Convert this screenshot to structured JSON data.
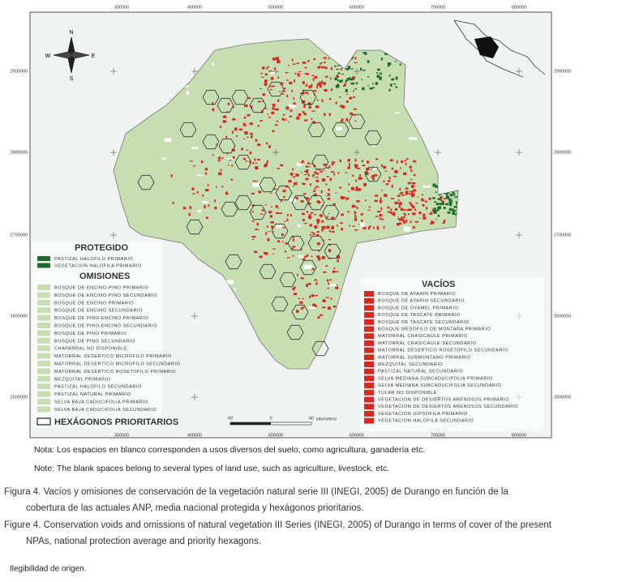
{
  "map": {
    "x_coordinates_top": [
      "300000",
      "400000",
      "500000",
      "600000",
      "700000",
      "800000"
    ],
    "x_coordinates_bottom": [
      "300000",
      "400000",
      "500000",
      "600000",
      "700000",
      "800000"
    ],
    "y_coordinates_left": [
      "2900000",
      "2800000",
      "2700000",
      "2600000",
      "2500000"
    ],
    "y_coordinates_right": [
      "2900000",
      "2800000",
      "2700000",
      "2600000",
      "2500000"
    ],
    "compass": {
      "n": "N",
      "s": "S",
      "e": "E",
      "w": "W"
    },
    "legend": {
      "protegido": {
        "title": "PROTEGIDO",
        "items": [
          "PASTIZAL HALOFILO PRIMARIO",
          "VEGETACION HALOFILA PRIMARIO"
        ]
      },
      "omisiones": {
        "title": "OMISIONES",
        "items": [
          "BOSQUE DE ENCINO-PINO PRIMARIO",
          "BOSQUE DE ENCINO-PINO SECUNDARIO",
          "BOSQUE DE ENCINO PRIMARIO",
          "BOSQUE DE ENCINO SECUNDARIO",
          "BOSQUE DE PINO-ENCINO PRIMARIO",
          "BOSQUE DE PINO-ENCINO SECUNDARIO",
          "BOSQUE DE PINO PRIMARIO",
          "BOSQUE DE PINO SECUNDARIO",
          "CHAPARRAL NO DISPONIBLE",
          "MATORRAL DESERTICO MICROFILO PRIMARIO",
          "MATORRAL DESERTICO MICROFILO SECUNDARIO",
          "MATORRAL DESERTICO ROSETOFILO PRIMARIO",
          "MEZQUITAL PRIMARIO",
          "PASTIZAL HALOFILO SECUNDARIO",
          "PASTIZAL NATURAL PRIMARIO",
          "SELVA BAJA CADUCIFOLIA PRIMARIO",
          "SELVA BAJA CADUCIFOLIA SECUNDARIO"
        ]
      },
      "hexagonos": "HEXÁGONOS PRIORITARIOS",
      "vacios": {
        "title": "VACÍOS",
        "items": [
          "BOSQUE DE AYARIN PRIMARIO",
          "BOSQUE DE AYARIN SECUNDARIO",
          "BOSQUE DE OYAMEL PRIMARIO",
          "BOSQUE DE TASCATE PRIMARIO",
          "BOSQUE DE TASCATE SECUNDARIO",
          "BOSQUE MESOFILO DE MONTAÑA PRIMARIO",
          "MATORRAL CRASICAULE PRIMARIO",
          "MATORRAL CRASICAULE SECUNDARIO",
          "MATORRAL DESERTICO ROSETOFILO SECUNDARIO",
          "MATORRAL SUBMONTANO PRIMARIO",
          "MEZQUITAL SECUNDARIO",
          "PASTIZAL NATURAL SECUNDARIO",
          "SELVA MEDIANA SUBCADUCIFOLIA PRIMARIO",
          "SELVA MEDIANA SUBCADUCIFOLIA SECUNDARIO",
          "TULAR NO DISPONIBLE",
          "VEGETACION DE DESIERTOS ARENOSOS PRIMARIO",
          "VEGETACION DE DESIERTOS ARENOSOS SECUNDARIO",
          "VEGETACION GIPSOFILA PRIMARIO",
          "VEGETACION HALOFILA SECUNDARIO"
        ]
      }
    },
    "scale_bar": {
      "labels": [
        "60",
        "0",
        "60"
      ],
      "unit": "kilometers"
    }
  },
  "notes": [
    "Nota: Los espacios en blanco corresponden a usos diversos del suelo, como agricultura, ganadería etc.",
    "Note: The blank spaces belong to several types of land use, such as agriculture, livestock, etc."
  ],
  "captions": [
    "Figura 4. Vacíos y omisiones de conservación de la vegetación natural serie III (INEGI, 2005) de Durango en función de la",
    "cobertura de las actuales ANP, media nacional protegida y hexágonos prioritarios.",
    "Figure 4. Conservation voids and omissions of natural vegetation III Series (INEGI, 2005) of Durango in terms of cover of the present",
    "NPAs, national protection average and priority hexagons."
  ],
  "source_note": "Ilegibilidad de origen."
}
